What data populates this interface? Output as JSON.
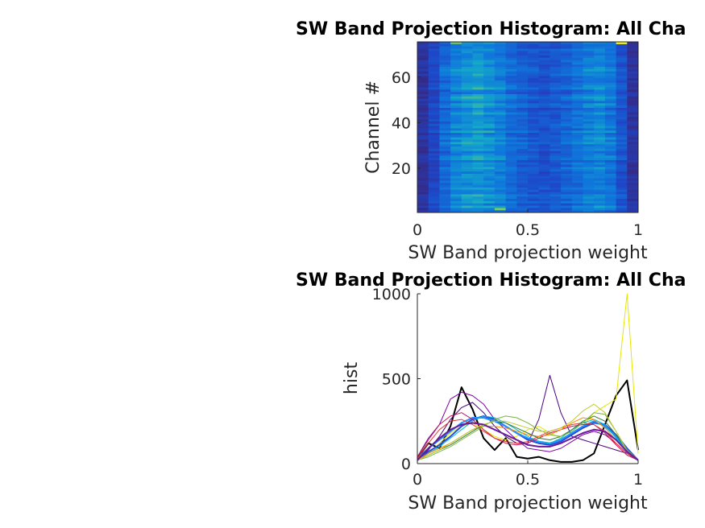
{
  "chart_data": [
    {
      "type": "heatmap",
      "title": "SW Band Projection Histogram: All Cha",
      "xlabel": "SW Band projection weight",
      "ylabel": "Channel #",
      "xlim": [
        0,
        1
      ],
      "ylim": [
        0.5,
        75.5
      ],
      "xticks": [
        "0",
        "0.5",
        "1"
      ],
      "yticks": [
        "20",
        "40",
        "60"
      ],
      "colormap": "parula",
      "grid": false,
      "values_description_rows": 75,
      "bins": 20,
      "profile": [
        0.06,
        0.18,
        0.34,
        0.46,
        0.52,
        0.55,
        0.5,
        0.44,
        0.36,
        0.3,
        0.26,
        0.24,
        0.27,
        0.32,
        0.38,
        0.44,
        0.47,
        0.4,
        0.25,
        0.07
      ],
      "bright_cells": [
        {
          "channel": 75,
          "bin": 18,
          "level": 1.0
        },
        {
          "channel": 75,
          "bin": 3,
          "level": 0.78
        },
        {
          "channel": 2,
          "bin": 7,
          "level": 0.8
        }
      ]
    },
    {
      "type": "line",
      "title": "SW Band Projection Histogram: All Cha",
      "xlabel": "SW Band projection weight",
      "ylabel": "hist",
      "xlim": [
        0,
        1
      ],
      "ylim": [
        0,
        1000
      ],
      "xticks": [
        "0",
        "0.5",
        "1"
      ],
      "yticks": [
        "0",
        "500",
        "1000"
      ],
      "grid": false,
      "box": "left-bottom",
      "x": [
        0,
        0.05,
        0.1,
        0.15,
        0.2,
        0.25,
        0.3,
        0.35,
        0.4,
        0.45,
        0.5,
        0.55,
        0.6,
        0.65,
        0.7,
        0.75,
        0.8,
        0.85,
        0.9,
        0.95,
        1
      ],
      "series": [
        {
          "color": "#000000",
          "width": 2,
          "values": [
            30,
            120,
            90,
            220,
            450,
            320,
            150,
            80,
            150,
            40,
            30,
            40,
            20,
            10,
            10,
            20,
            60,
            230,
            400,
            490,
            80
          ]
        },
        {
          "color": "#e6e600",
          "width": 1,
          "values": [
            20,
            60,
            120,
            180,
            220,
            240,
            200,
            160,
            140,
            160,
            200,
            220,
            180,
            150,
            170,
            220,
            300,
            340,
            380,
            1000,
            60
          ]
        },
        {
          "color": "#4b0082",
          "width": 1,
          "values": [
            20,
            80,
            160,
            260,
            330,
            360,
            300,
            220,
            160,
            120,
            120,
            260,
            520,
            300,
            160,
            140,
            120,
            100,
            80,
            60,
            20
          ]
        },
        {
          "color": "#7b00a8",
          "width": 1,
          "values": [
            40,
            150,
            230,
            380,
            420,
            400,
            350,
            260,
            200,
            140,
            90,
            80,
            70,
            90,
            130,
            170,
            190,
            170,
            120,
            60,
            20
          ]
        },
        {
          "color": "#2a4bd7",
          "width": 2,
          "values": [
            20,
            70,
            110,
            160,
            220,
            260,
            280,
            260,
            220,
            180,
            140,
            120,
            110,
            130,
            170,
            210,
            240,
            230,
            170,
            90,
            20
          ]
        },
        {
          "color": "#1e90ff",
          "width": 2,
          "values": [
            30,
            90,
            140,
            190,
            240,
            270,
            270,
            250,
            220,
            180,
            150,
            130,
            120,
            140,
            180,
            220,
            250,
            220,
            160,
            80,
            20
          ]
        },
        {
          "color": "#00bcd4",
          "width": 1,
          "values": [
            20,
            60,
            100,
            150,
            200,
            250,
            280,
            270,
            240,
            200,
            160,
            130,
            120,
            150,
            200,
            240,
            260,
            230,
            150,
            70,
            20
          ]
        },
        {
          "color": "#c2185b",
          "width": 1,
          "values": [
            40,
            140,
            230,
            280,
            300,
            260,
            200,
            150,
            120,
            110,
            120,
            150,
            180,
            200,
            220,
            230,
            230,
            180,
            110,
            50,
            20
          ]
        },
        {
          "color": "#e53935",
          "width": 1,
          "values": [
            30,
            120,
            200,
            250,
            260,
            230,
            190,
            150,
            130,
            120,
            130,
            160,
            190,
            210,
            230,
            240,
            230,
            190,
            120,
            60,
            20
          ]
        },
        {
          "color": "#ff8c00",
          "width": 1,
          "values": [
            20,
            60,
            90,
            120,
            160,
            200,
            220,
            220,
            210,
            190,
            170,
            160,
            170,
            200,
            240,
            270,
            260,
            210,
            140,
            70,
            20
          ]
        },
        {
          "color": "#2e7d32",
          "width": 1,
          "values": [
            20,
            50,
            80,
            110,
            150,
            190,
            230,
            250,
            240,
            210,
            180,
            150,
            140,
            160,
            200,
            250,
            280,
            250,
            170,
            80,
            20
          ]
        },
        {
          "color": "#7cb342",
          "width": 1,
          "values": [
            20,
            40,
            70,
            100,
            140,
            180,
            220,
            260,
            280,
            270,
            240,
            200,
            170,
            160,
            190,
            240,
            300,
            290,
            190,
            80,
            20
          ]
        },
        {
          "color": "#c0ca33",
          "width": 1,
          "values": [
            20,
            50,
            80,
            120,
            160,
            200,
            230,
            250,
            250,
            230,
            210,
            190,
            190,
            210,
            250,
            310,
            350,
            300,
            190,
            70,
            20
          ]
        },
        {
          "color": "#6a1b9a",
          "width": 2,
          "values": [
            20,
            90,
            150,
            200,
            230,
            240,
            230,
            200,
            170,
            140,
            110,
            100,
            100,
            120,
            150,
            180,
            200,
            190,
            140,
            70,
            20
          ]
        }
      ]
    }
  ]
}
